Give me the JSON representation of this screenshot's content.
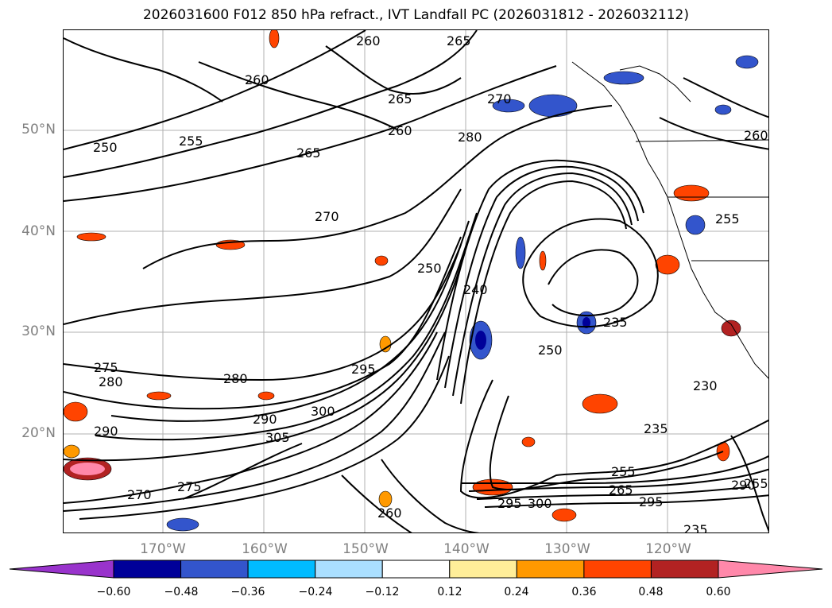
{
  "title": "2026031600 F012 850 hPa refract., IVT Landfall PC (2026031812 - 2026032112)",
  "lat_labels": [
    "50°N",
    "40°N",
    "30°N",
    "20°N"
  ],
  "lon_labels": [
    "170°W",
    "160°W",
    "150°W",
    "140°W",
    "130°W",
    "120°W"
  ],
  "contour_labels": [
    "260",
    "265",
    "260",
    "265",
    "270",
    "260",
    "280",
    "250",
    "255",
    "265",
    "270",
    "255",
    "240",
    "250",
    "235",
    "250",
    "230",
    "235",
    "275",
    "280",
    "280",
    "290",
    "300",
    "305",
    "295",
    "270",
    "275",
    "290",
    "260",
    "295",
    "300",
    "255",
    "265",
    "290",
    "295",
    "255",
    "235",
    "260"
  ],
  "colorbar": {
    "tick_labels": [
      "−0.60",
      "−0.48",
      "−0.36",
      "−0.24",
      "−0.12",
      "0.12",
      "0.24",
      "0.36",
      "0.48",
      "0.60"
    ],
    "colors": [
      "#9933cc",
      "#000099",
      "#3355cc",
      "#00bbff",
      "#aadfff",
      "#ffffff",
      "#ffee99",
      "#ff9900",
      "#ff4400",
      "#b22222",
      "#ff88aa"
    ]
  }
}
